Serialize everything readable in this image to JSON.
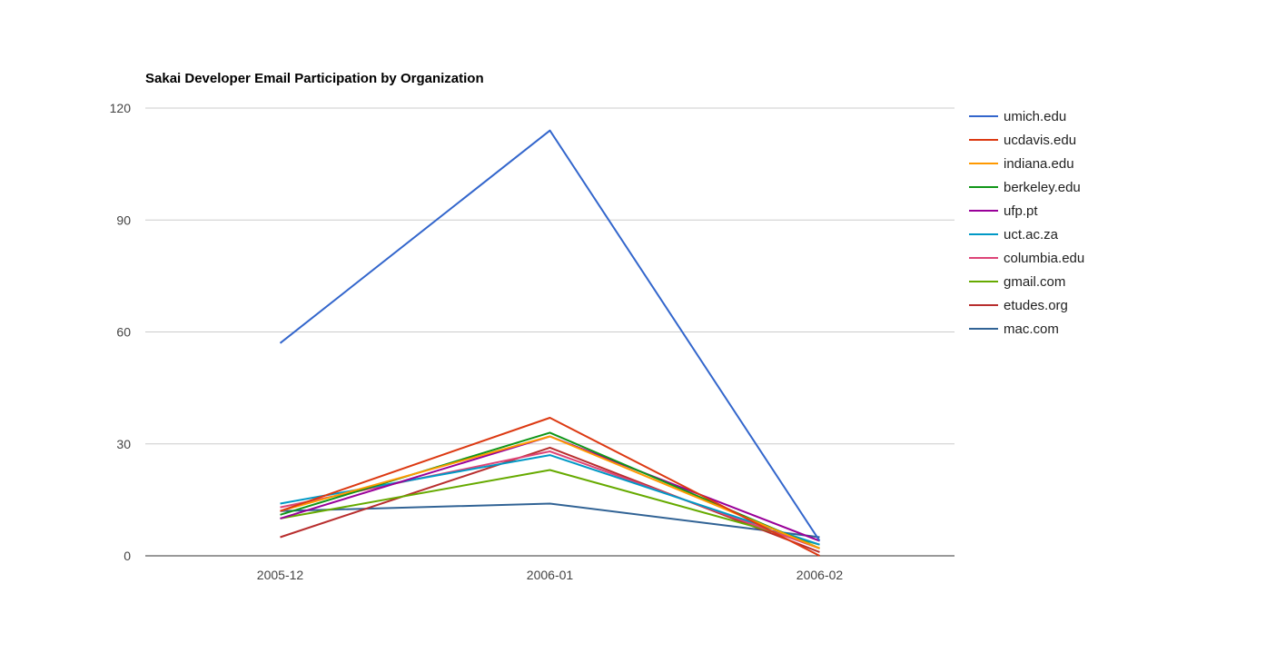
{
  "colors": {
    "umich.edu": "#3366cc",
    "ucdavis.edu": "#dc3912",
    "indiana.edu": "#ff9900",
    "berkeley.edu": "#109618",
    "ufp.pt": "#990099",
    "uct.ac.za": "#0099c6",
    "columbia.edu": "#dd4477",
    "gmail.com": "#66aa00",
    "etudes.org": "#b82e2e",
    "mac.com": "#316395"
  },
  "chart_data": {
    "type": "line",
    "title": "Sakai Developer Email Participation by Organization",
    "xlabel": "",
    "ylabel": "",
    "categories": [
      "2005-12",
      "2006-01",
      "2006-02"
    ],
    "ylim": [
      0,
      120
    ],
    "yticks": [
      "0",
      "30",
      "60",
      "90",
      "120"
    ],
    "grid": true,
    "legend_position": "right",
    "series": [
      {
        "name": "umich.edu",
        "values": [
          57,
          114,
          4
        ]
      },
      {
        "name": "ucdavis.edu",
        "values": [
          12,
          37,
          0
        ]
      },
      {
        "name": "indiana.edu",
        "values": [
          12,
          32,
          2
        ]
      },
      {
        "name": "berkeley.edu",
        "values": [
          11,
          33,
          2
        ]
      },
      {
        "name": "ufp.pt",
        "values": [
          10,
          32,
          4
        ]
      },
      {
        "name": "uct.ac.za",
        "values": [
          14,
          27,
          3
        ]
      },
      {
        "name": "columbia.edu",
        "values": [
          13,
          28,
          2
        ]
      },
      {
        "name": "gmail.com",
        "values": [
          10,
          23,
          3
        ]
      },
      {
        "name": "etudes.org",
        "values": [
          5,
          29,
          1
        ]
      },
      {
        "name": "mac.com",
        "values": [
          12,
          14,
          5
        ]
      }
    ]
  }
}
